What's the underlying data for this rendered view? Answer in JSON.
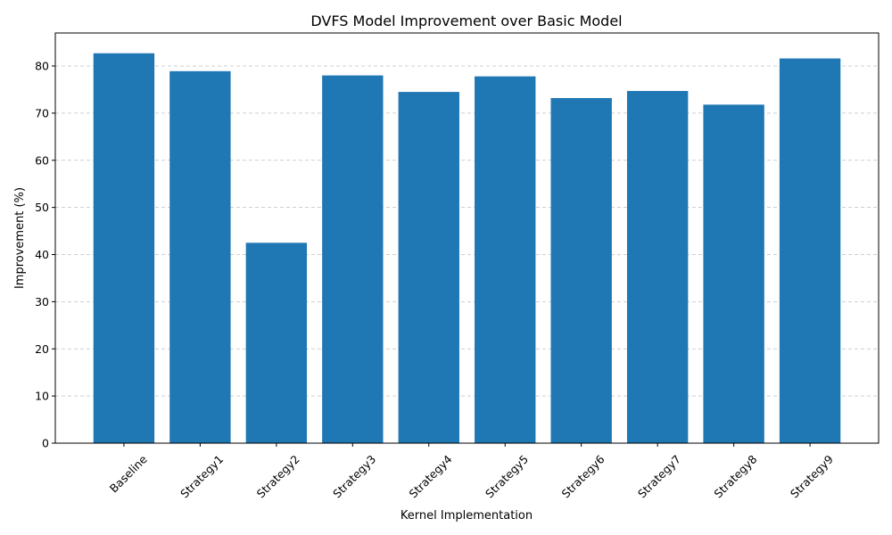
{
  "chart_data": {
    "type": "bar",
    "title": "DVFS Model Improvement over Basic Model",
    "xlabel": "Kernel Implementation",
    "ylabel": "Improvement (%)",
    "categories": [
      "Baseline",
      "Strategy1",
      "Strategy2",
      "Strategy3",
      "Strategy4",
      "Strategy5",
      "Strategy6",
      "Strategy7",
      "Strategy8",
      "Strategy9"
    ],
    "values": [
      82.7,
      78.9,
      42.5,
      78.0,
      74.5,
      77.8,
      73.2,
      74.7,
      71.8,
      81.6
    ],
    "ylim": [
      0,
      87
    ],
    "yticks": [
      0,
      10,
      20,
      30,
      40,
      50,
      60,
      70,
      80
    ],
    "grid": "y-dashed",
    "bar_color": "#1f77b4",
    "x_tick_rotation": 45
  }
}
